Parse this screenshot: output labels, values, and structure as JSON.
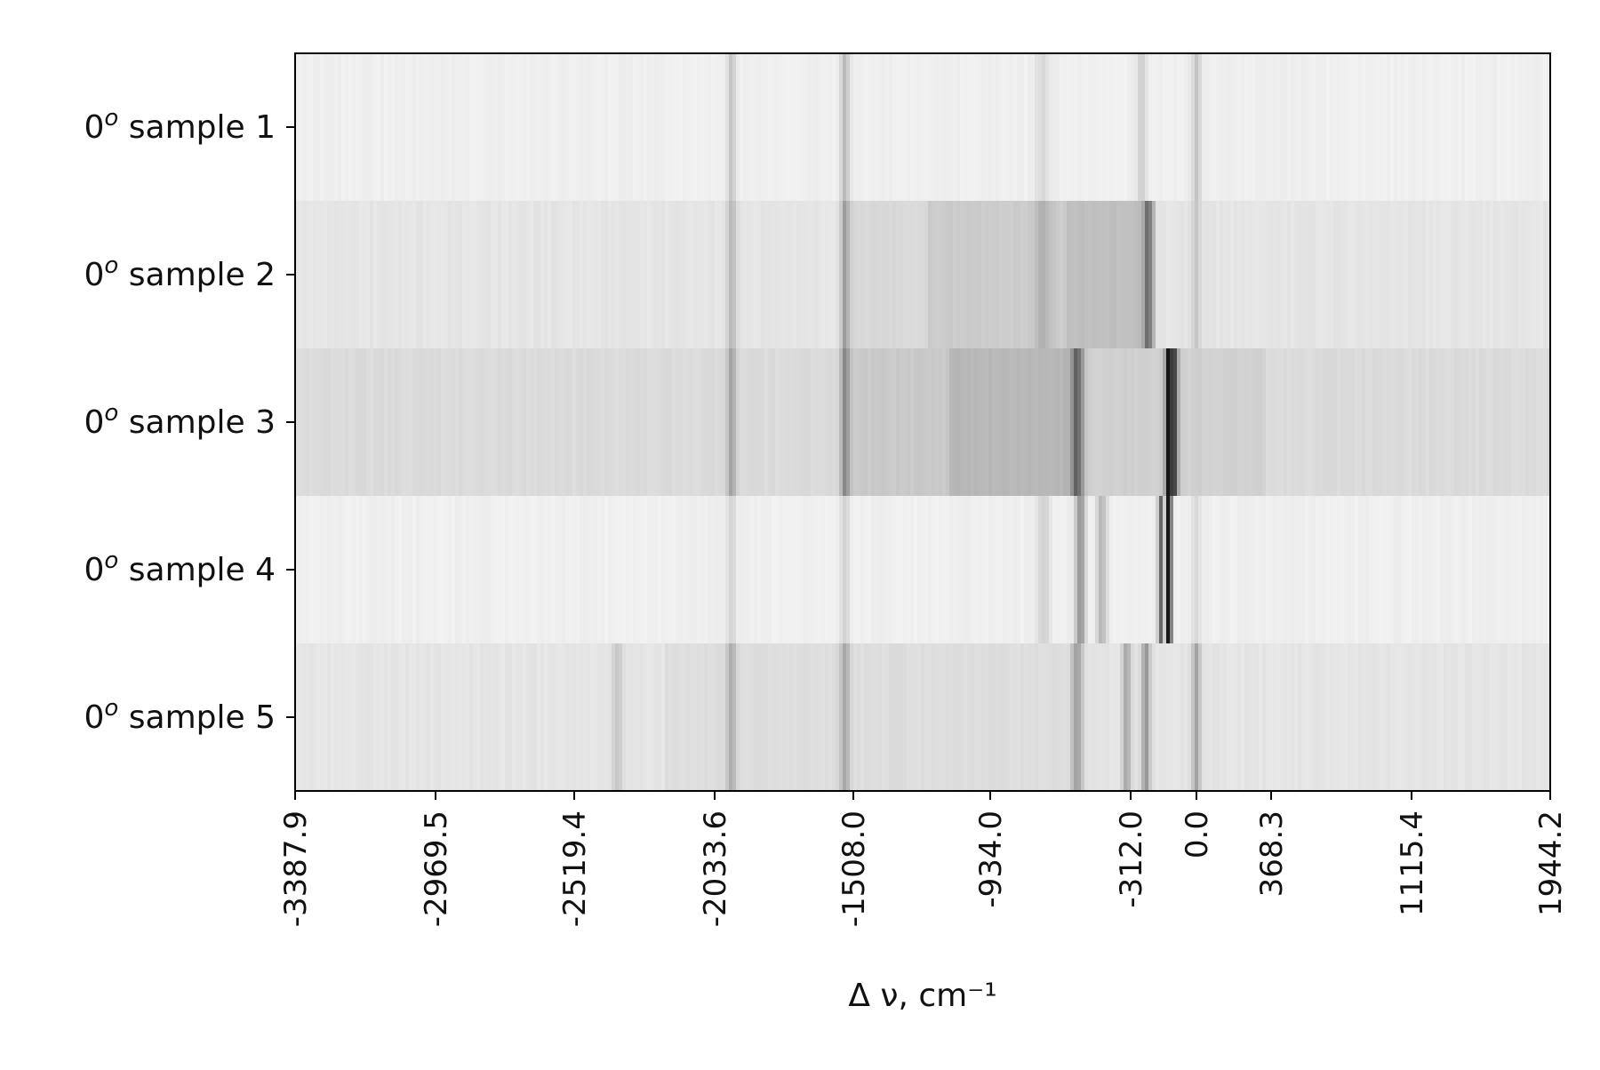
{
  "chart_data": {
    "type": "heatmap",
    "colormap": "greys",
    "title": "",
    "xlabel": "Δ ν, cm⁻¹",
    "ylabel": "",
    "xlim": [
      -3387.9,
      1944.2
    ],
    "xticks": [
      -3387.9,
      -2969.5,
      -2519.4,
      -2033.6,
      -1508.0,
      -934.0,
      -312.0,
      0.0,
      368.3,
      1115.4,
      1944.2
    ],
    "xtick_labels": [
      "-3387.9",
      "-2969.5",
      "-2519.4",
      "-2033.6",
      "-1508.0",
      "-934.0",
      "-312.0",
      "0.0",
      "368.3",
      "1115.4",
      "1944.2"
    ],
    "rows": [
      {
        "label": "0",
        "sup": "o",
        "suffix": " sample 1",
        "base": 0.05,
        "segments": [],
        "peaks": [
          {
            "x": -1970,
            "w": 12,
            "i": 0.16
          },
          {
            "x": -1540,
            "w": 12,
            "i": 0.2
          },
          {
            "x": -700,
            "w": 25,
            "i": 0.08
          },
          {
            "x": -260,
            "w": 14,
            "i": 0.14
          },
          {
            "x": 0,
            "w": 14,
            "i": 0.18
          }
        ]
      },
      {
        "label": "0",
        "sup": "o",
        "suffix": " sample 2",
        "base": 0.09,
        "segments": [
          {
            "from": -1550,
            "to": -1200,
            "i": 0.14
          },
          {
            "from": -1200,
            "to": -600,
            "i": 0.19
          },
          {
            "from": -600,
            "to": -200,
            "i": 0.24
          }
        ],
        "peaks": [
          {
            "x": -1970,
            "w": 12,
            "i": 0.18
          },
          {
            "x": -1540,
            "w": 12,
            "i": 0.24
          },
          {
            "x": -700,
            "w": 25,
            "i": 0.1
          },
          {
            "x": -230,
            "w": 14,
            "i": 0.35
          },
          {
            "x": 0,
            "w": 14,
            "i": 0.12
          }
        ]
      },
      {
        "label": "0",
        "sup": "o",
        "suffix": " sample 3",
        "base": 0.13,
        "segments": [
          {
            "from": -1550,
            "to": -1100,
            "i": 0.2
          },
          {
            "from": -1100,
            "to": -550,
            "i": 0.27
          },
          {
            "from": -550,
            "to": 340,
            "i": 0.17
          }
        ],
        "peaks": [
          {
            "x": -1970,
            "w": 12,
            "i": 0.22
          },
          {
            "x": -1540,
            "w": 12,
            "i": 0.26
          },
          {
            "x": -545,
            "w": 18,
            "i": 0.4
          },
          {
            "x": -130,
            "w": 12,
            "i": 0.8
          },
          {
            "x": -100,
            "w": 10,
            "i": 0.5
          }
        ]
      },
      {
        "label": "0",
        "sup": "o",
        "suffix": " sample 4",
        "base": 0.05,
        "segments": [],
        "peaks": [
          {
            "x": -1970,
            "w": 12,
            "i": 0.12
          },
          {
            "x": -1540,
            "w": 12,
            "i": 0.12
          },
          {
            "x": -700,
            "w": 22,
            "i": 0.12
          },
          {
            "x": -535,
            "w": 16,
            "i": 0.35
          },
          {
            "x": -440,
            "w": 16,
            "i": 0.22
          },
          {
            "x": -130,
            "w": 9,
            "i": 0.98
          },
          {
            "x": -170,
            "w": 9,
            "i": 0.55
          },
          {
            "x": 0,
            "w": 14,
            "i": 0.1
          }
        ]
      },
      {
        "label": "0",
        "sup": "o",
        "suffix": " sample 5",
        "base": 0.09,
        "segments": [
          {
            "from": -2200,
            "to": -600,
            "i": 0.12
          }
        ],
        "peaks": [
          {
            "x": -2370,
            "w": 12,
            "i": 0.12
          },
          {
            "x": -1970,
            "w": 12,
            "i": 0.2
          },
          {
            "x": -1540,
            "w": 12,
            "i": 0.22
          },
          {
            "x": -550,
            "w": 18,
            "i": 0.28
          },
          {
            "x": -330,
            "w": 14,
            "i": 0.25
          },
          {
            "x": -240,
            "w": 14,
            "i": 0.3
          },
          {
            "x": 0,
            "w": 14,
            "i": 0.25
          }
        ]
      }
    ],
    "grid": false,
    "legend": "none"
  }
}
